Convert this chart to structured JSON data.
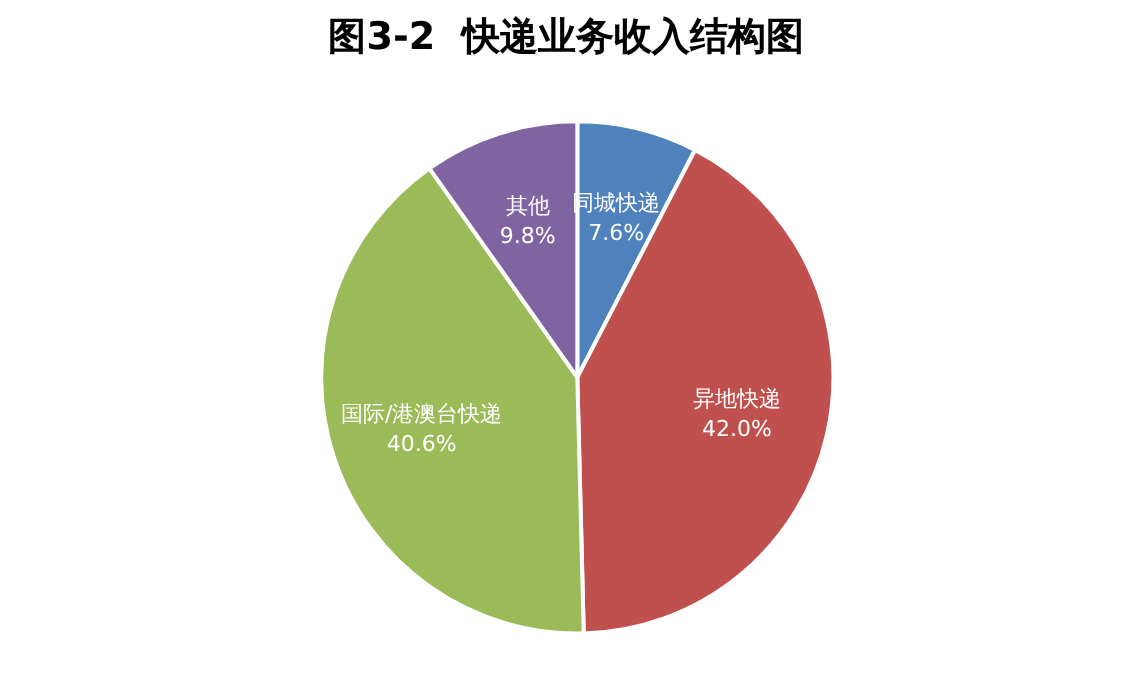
{
  "chart_data": {
    "type": "pie",
    "title": "图3-2  快递业务收入结构图",
    "categories": [
      "同城快递",
      "异地快递",
      "国际/港澳台快递",
      "其他"
    ],
    "values": [
      7.6,
      42.0,
      40.6,
      9.8
    ],
    "value_labels": [
      "7.6%",
      "42.0%",
      "40.6%",
      "9.8%"
    ],
    "colors": [
      "#4f81bd",
      "#c0504d",
      "#9bbb59",
      "#8064a2"
    ]
  }
}
